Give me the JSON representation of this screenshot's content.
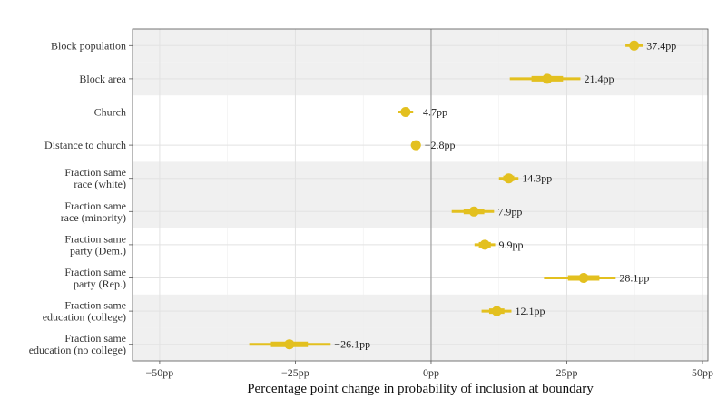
{
  "chart_data": {
    "type": "scatter",
    "subtype": "dot-and-interval",
    "xlabel": "Percentage point change in probability of inclusion at boundary",
    "ylabel": "",
    "xlim": [
      -55,
      51
    ],
    "x_ticks": [
      {
        "value": -50,
        "label": "−50pp"
      },
      {
        "value": -25,
        "label": "−25pp"
      },
      {
        "value": 0,
        "label": "0pp"
      },
      {
        "value": 25,
        "label": "25pp"
      },
      {
        "value": 50,
        "label": "50pp"
      }
    ],
    "reference_line": 0,
    "grid": true,
    "color": "#e3c01f",
    "band_color": "#f0f0f0",
    "rows": [
      {
        "label": [
          "Block population"
        ],
        "estimate": 37.4,
        "value_label": "37.4pp",
        "inner": [
          36.6,
          38.2
        ],
        "outer": [
          35.8,
          39.0
        ]
      },
      {
        "label": [
          "Block area"
        ],
        "estimate": 21.4,
        "value_label": "21.4pp",
        "inner": [
          18.5,
          24.3
        ],
        "outer": [
          14.5,
          27.5
        ]
      },
      {
        "label": [
          "Church"
        ],
        "estimate": -4.7,
        "value_label": "−4.7pp",
        "inner": [
          -5.5,
          -3.9
        ],
        "outer": [
          -6.1,
          -3.3
        ]
      },
      {
        "label": [
          "Distance to church"
        ],
        "estimate": -2.8,
        "value_label": "−2.8pp",
        "inner": [
          -3.3,
          -2.3
        ],
        "outer": [
          -3.7,
          -1.9
        ]
      },
      {
        "label": [
          "Fraction same",
          "race (white)"
        ],
        "estimate": 14.3,
        "value_label": "14.3pp",
        "inner": [
          13.3,
          15.3
        ],
        "outer": [
          12.5,
          16.1
        ]
      },
      {
        "label": [
          "Fraction same",
          "race (minority)"
        ],
        "estimate": 7.9,
        "value_label": "7.9pp",
        "inner": [
          6.0,
          9.8
        ],
        "outer": [
          3.8,
          11.6
        ]
      },
      {
        "label": [
          "Fraction same",
          "party (Dem.)"
        ],
        "estimate": 9.9,
        "value_label": "9.9pp",
        "inner": [
          8.8,
          11.0
        ],
        "outer": [
          8.0,
          11.8
        ]
      },
      {
        "label": [
          "Fraction same",
          "party (Rep.)"
        ],
        "estimate": 28.1,
        "value_label": "28.1pp",
        "inner": [
          25.2,
          31.0
        ],
        "outer": [
          20.8,
          34.0
        ]
      },
      {
        "label": [
          "Fraction same",
          "education (college)"
        ],
        "estimate": 12.1,
        "value_label": "12.1pp",
        "inner": [
          10.7,
          13.5
        ],
        "outer": [
          9.3,
          14.8
        ]
      },
      {
        "label": [
          "Fraction same",
          "education (no college)"
        ],
        "estimate": -26.1,
        "value_label": "−26.1pp",
        "inner": [
          -29.5,
          -22.7
        ],
        "outer": [
          -33.5,
          -18.5
        ]
      }
    ],
    "shaded_rows": [
      0,
      1,
      4,
      5,
      8,
      9
    ]
  }
}
